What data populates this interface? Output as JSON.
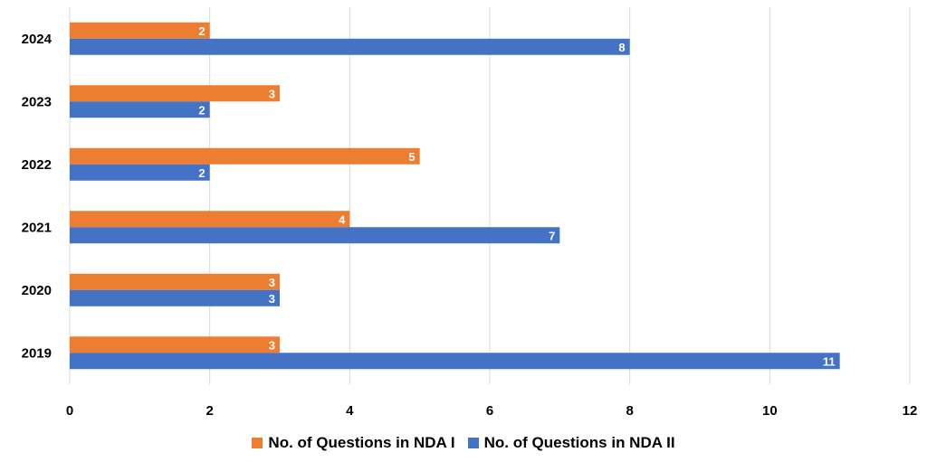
{
  "chart_data": {
    "type": "bar",
    "orientation": "horizontal",
    "categories": [
      "2024",
      "2023",
      "2022",
      "2021",
      "2020",
      "2019"
    ],
    "series": [
      {
        "name": "No. of Questions in NDA I",
        "values": [
          2,
          3,
          5,
          4,
          3,
          3
        ],
        "color": "#ED7D31"
      },
      {
        "name": "No. of Questions in NDA II",
        "values": [
          8,
          2,
          2,
          7,
          3,
          11
        ],
        "color": "#4472C4"
      }
    ],
    "x_ticks": [
      "0",
      "2",
      "4",
      "6",
      "8",
      "10",
      "12"
    ],
    "xlim": [
      0,
      12
    ],
    "grid": true,
    "legend_position": "bottom"
  }
}
